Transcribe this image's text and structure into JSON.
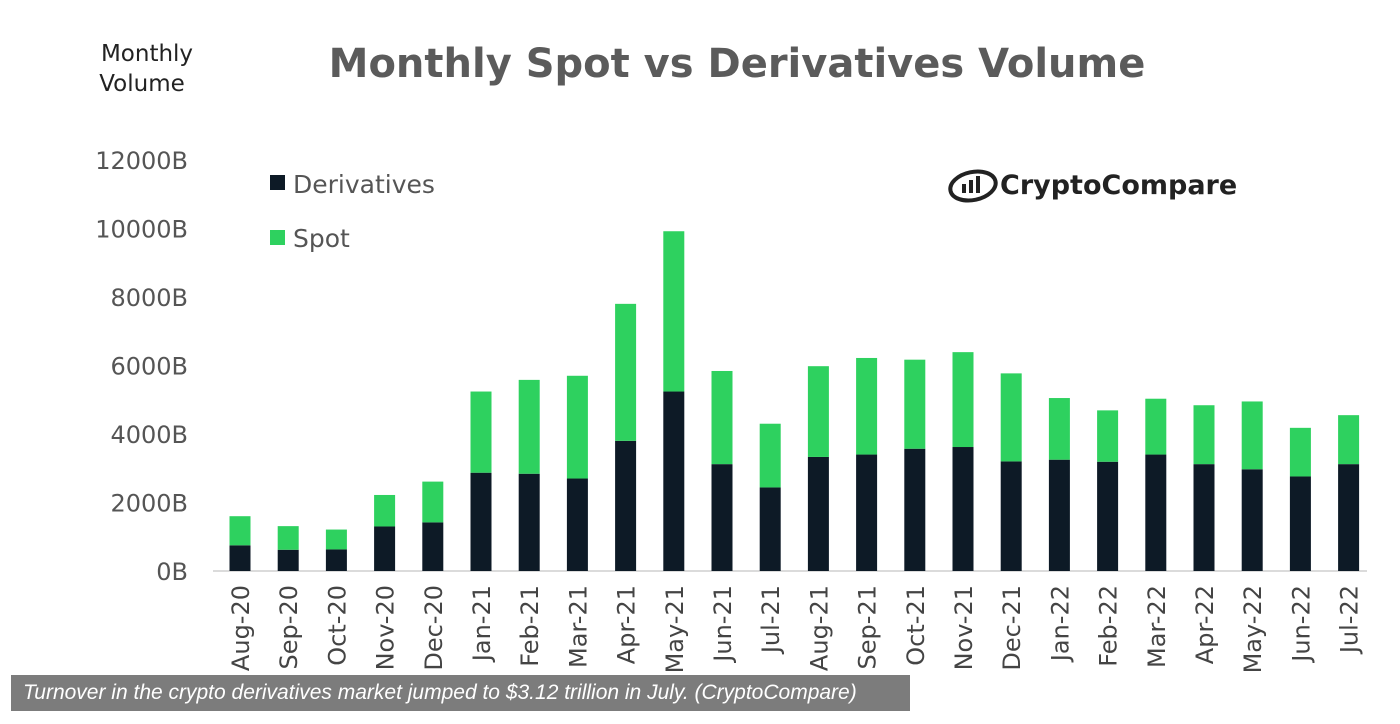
{
  "chart_data": {
    "type": "bar",
    "stacked": true,
    "title": "Monthly Spot vs Derivatives Volume",
    "ylabel_lines": [
      "Monthly",
      "Volume"
    ],
    "xlabel": "",
    "ylim": [
      0,
      12000
    ],
    "yticks": [
      0,
      2000,
      4000,
      6000,
      8000,
      10000,
      12000
    ],
    "ytick_labels": [
      "0B",
      "2000B",
      "4000B",
      "6000B",
      "8000B",
      "10000B",
      "12000B"
    ],
    "categories": [
      "Aug-20",
      "Sep-20",
      "Oct-20",
      "Nov-20",
      "Dec-20",
      "Jan-21",
      "Feb-21",
      "Mar-21",
      "Apr-21",
      "May-21",
      "Jun-21",
      "Jul-21",
      "Aug-21",
      "Sep-21",
      "Oct-21",
      "Nov-21",
      "Dec-21",
      "Jan-22",
      "Feb-22",
      "Mar-22",
      "Apr-22",
      "May-22",
      "Jun-22",
      "Jul-22"
    ],
    "series": [
      {
        "name": "Derivatives",
        "color": "#0d1a26",
        "values": [
          750,
          620,
          630,
          1300,
          1420,
          2870,
          2840,
          2700,
          3800,
          5240,
          3120,
          2440,
          3330,
          3400,
          3570,
          3620,
          3200,
          3250,
          3190,
          3400,
          3120,
          2970,
          2760,
          3120
        ]
      },
      {
        "name": "Spot",
        "color": "#2ed15f",
        "values": [
          850,
          690,
          580,
          920,
          1190,
          2370,
          2740,
          3000,
          4000,
          4680,
          2720,
          1860,
          2650,
          2820,
          2600,
          2770,
          2570,
          1800,
          1500,
          1630,
          1720,
          1980,
          1420,
          1430
        ]
      }
    ],
    "legend_position": "top-left"
  },
  "brand": {
    "name": "CryptoCompare",
    "icon": "cryptocompare-logo-icon"
  },
  "caption": "Turnover in the crypto derivatives market jumped to $3.12 trillion in July. (CryptoCompare)"
}
